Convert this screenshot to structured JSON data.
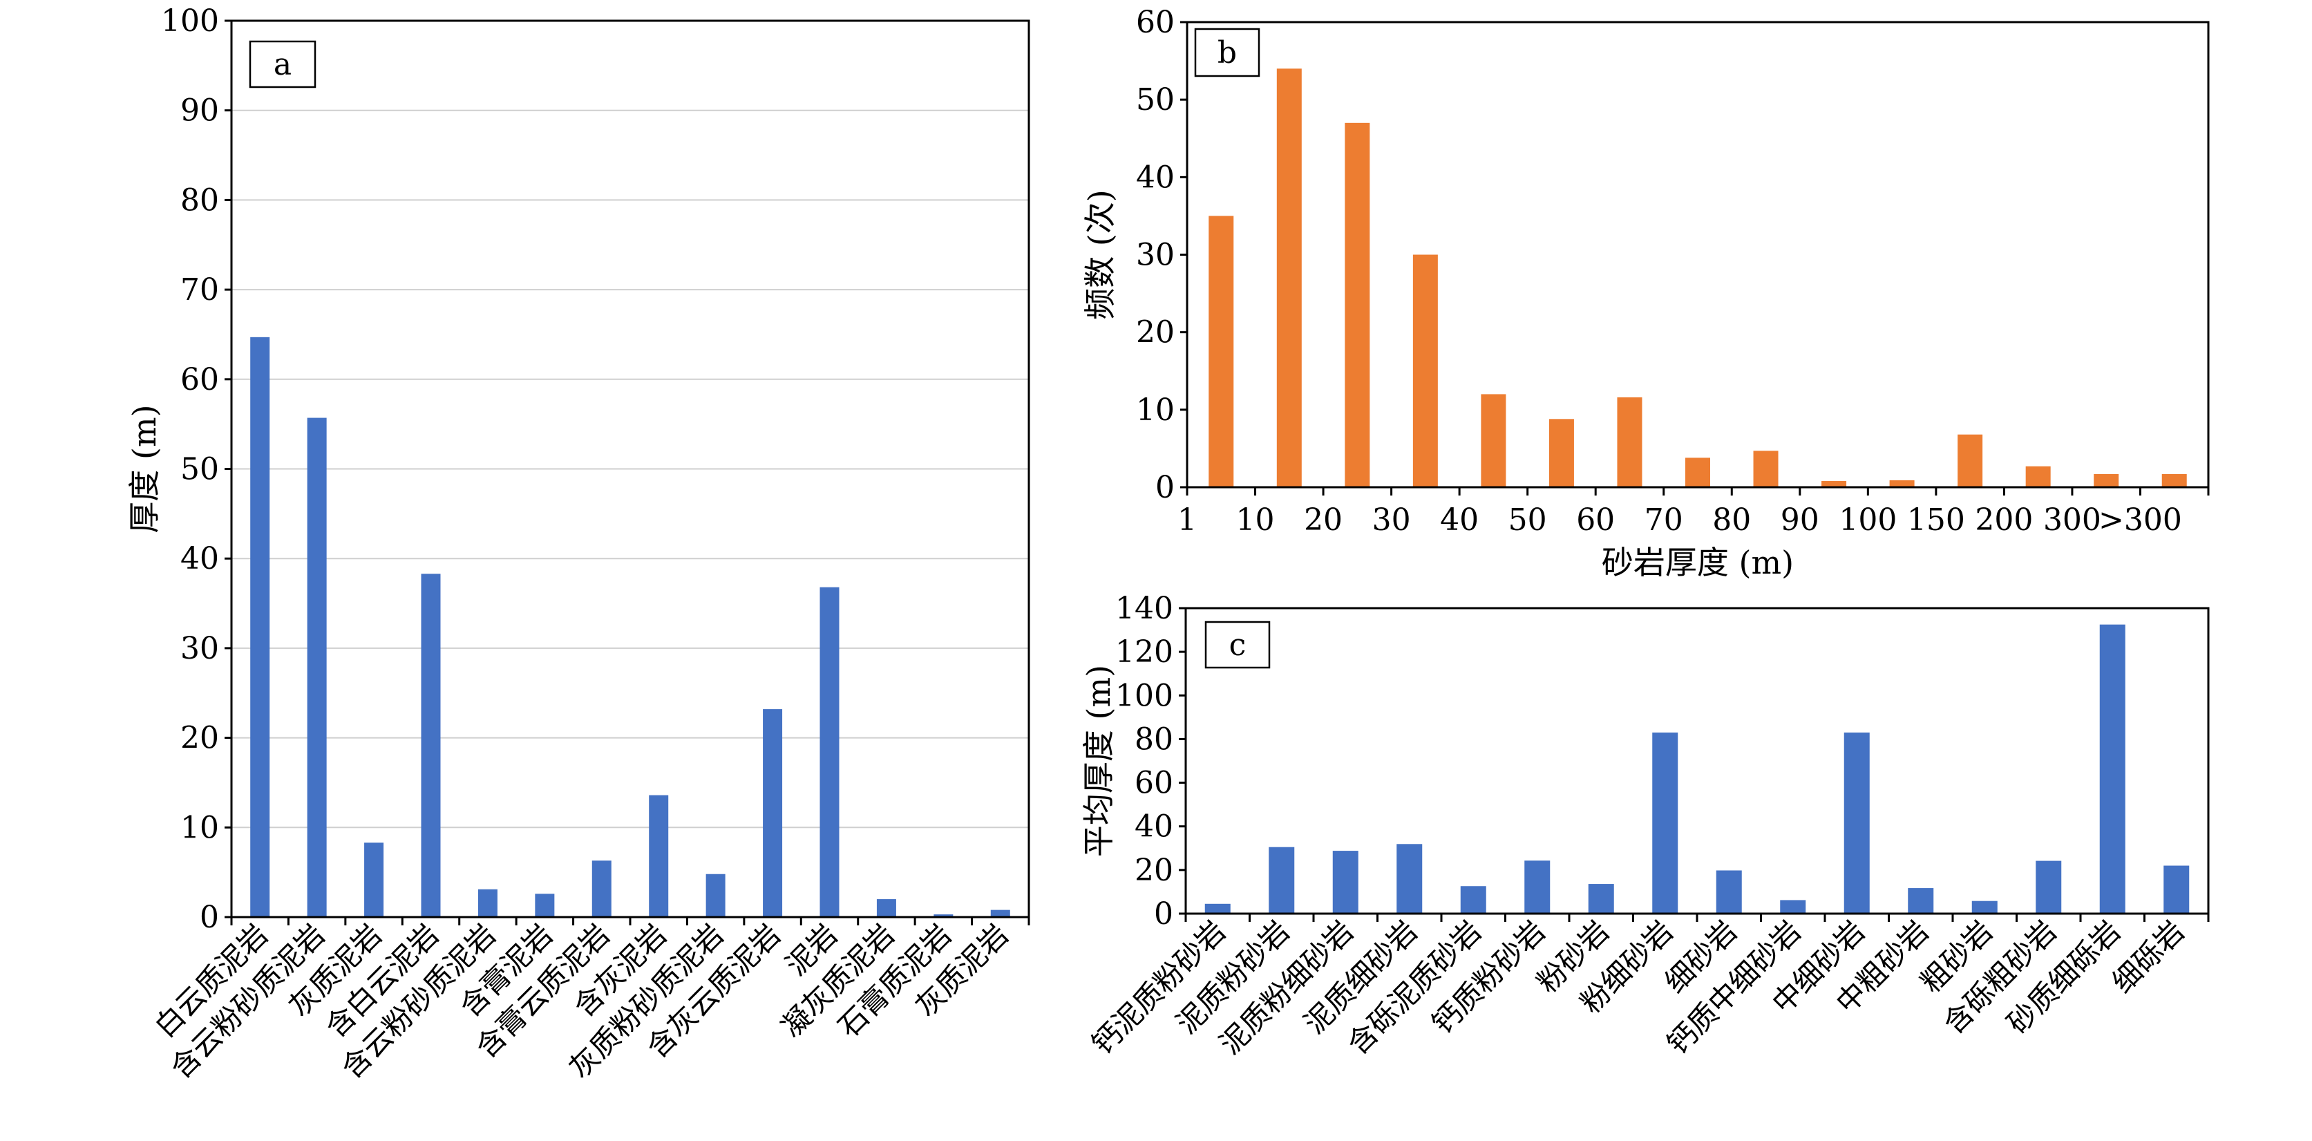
{
  "colors": {
    "panel_a": "#4472c4",
    "panel_b": "#ed7d31",
    "panel_c": "#4472c4",
    "grid": "#cfcfcf",
    "axis": "#000000"
  },
  "chart_data": [
    {
      "id": "a",
      "type": "bar",
      "panel_label": "a",
      "ylabel": "厚度 (m)",
      "xlabel": "",
      "ylim": [
        0,
        100
      ],
      "yticks": [
        0,
        10,
        20,
        30,
        40,
        50,
        60,
        70,
        80,
        90,
        100
      ],
      "grid": true,
      "categories": [
        "白云质泥岩",
        "含云粉砂质泥岩",
        "灰质泥岩",
        "含白云泥岩",
        "含云粉砂质泥岩",
        "含膏泥岩",
        "含膏云质泥岩",
        "含灰泥岩",
        "灰质粉砂质泥岩",
        "含灰云质泥岩",
        "泥岩",
        "凝灰质泥岩",
        "石膏质泥岩",
        "灰质泥岩"
      ],
      "values": [
        64.7,
        55.7,
        8.3,
        38.3,
        3.1,
        2.6,
        6.3,
        13.6,
        4.8,
        23.2,
        36.8,
        2.0,
        0.3,
        0.8
      ]
    },
    {
      "id": "b",
      "type": "bar",
      "panel_label": "b",
      "ylabel": "频数 (次)",
      "xlabel": "砂岩厚度 (m)",
      "ylim": [
        0,
        60
      ],
      "yticks": [
        0,
        10,
        20,
        30,
        40,
        50,
        60
      ],
      "grid": false,
      "tick_labels": [
        "1",
        "10",
        "20",
        "30",
        "40",
        "50",
        "60",
        "70",
        "80",
        "90",
        "100",
        "150",
        "200",
        "300",
        ">300"
      ],
      "values": [
        35,
        54,
        47,
        30,
        12,
        8.8,
        11.6,
        3.8,
        4.7,
        0.8,
        0.9,
        6.8,
        2.7,
        1.7,
        1.7
      ]
    },
    {
      "id": "c",
      "type": "bar",
      "panel_label": "c",
      "ylabel": "平均厚度 (m)",
      "xlabel": "",
      "ylim": [
        0,
        140
      ],
      "yticks": [
        0,
        20,
        40,
        60,
        80,
        100,
        120,
        140
      ],
      "grid": false,
      "categories": [
        "钙泥质粉砂岩",
        "泥质粉砂岩",
        "泥质粉细砂岩",
        "泥质细砂岩",
        "含砾泥质砂岩",
        "钙质粉砂岩",
        "粉砂岩",
        "粉细砂岩",
        "细砂岩",
        "钙质中细砂岩",
        "中细砂岩",
        "中粗砂岩",
        "粗砂岩",
        "含砾粗砂岩",
        "砂质细砾岩",
        "细砾岩"
      ],
      "values": [
        4.5,
        30.5,
        28.8,
        31.9,
        12.6,
        24.3,
        13.6,
        83,
        19.8,
        6.2,
        83,
        11.7,
        5.8,
        24.2,
        132.5,
        22
      ]
    }
  ]
}
